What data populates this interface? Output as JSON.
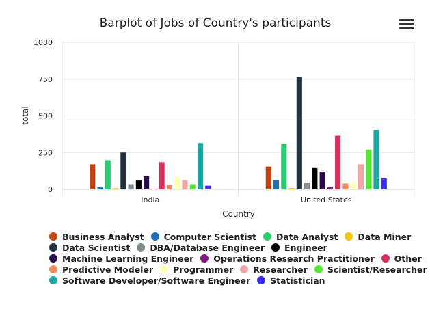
{
  "chart_data": {
    "type": "bar",
    "title": "Barplot of Jobs of Country's participants",
    "xlabel": "Country",
    "ylabel": "total",
    "ylim": [
      0,
      1000
    ],
    "yticks": [
      "0",
      "250",
      "500",
      "750",
      "1000"
    ],
    "categories": [
      "India",
      "United States"
    ],
    "grid": true,
    "legend_position": "bottom",
    "series": [
      {
        "name": "Business Analyst",
        "color": "#c1440e",
        "values": [
          170,
          155
        ]
      },
      {
        "name": "Computer Scientist",
        "color": "#1f6fb2",
        "values": [
          15,
          65
        ]
      },
      {
        "name": "Data Analyst",
        "color": "#2ecc71",
        "values": [
          198,
          310
        ]
      },
      {
        "name": "Data Miner",
        "color": "#f1c40f",
        "values": [
          8,
          10
        ]
      },
      {
        "name": "Data Scientist",
        "color": "#22313f",
        "values": [
          250,
          765
        ]
      },
      {
        "name": "DBA/Database Engineer",
        "color": "#7f8c8d",
        "values": [
          35,
          45
        ]
      },
      {
        "name": "Engineer",
        "color": "#000000",
        "values": [
          60,
          145
        ]
      },
      {
        "name": "Machine Learning Engineer",
        "color": "#2c0a4d",
        "values": [
          90,
          120
        ]
      },
      {
        "name": "Operations Research Practitioner",
        "color": "#7d1a7d",
        "values": [
          3,
          18
        ]
      },
      {
        "name": "Other",
        "color": "#d92f5e",
        "values": [
          185,
          365
        ]
      },
      {
        "name": "Predictive Modeler",
        "color": "#f28a5c",
        "values": [
          30,
          40
        ]
      },
      {
        "name": "Programmer",
        "color": "#ffffb3",
        "values": [
          85,
          45
        ]
      },
      {
        "name": "Researcher",
        "color": "#f4a6a6",
        "values": [
          60,
          170
        ]
      },
      {
        "name": "Scientist/Researcher",
        "color": "#55e631",
        "values": [
          35,
          270
        ]
      },
      {
        "name": "Software Developer/Software Engineer",
        "color": "#1aa7a1",
        "values": [
          315,
          405
        ]
      },
      {
        "name": "Statistician",
        "color": "#3a2ff0",
        "values": [
          25,
          75
        ]
      }
    ]
  },
  "ui": {
    "menu_icon": "hamburger-menu-icon"
  }
}
